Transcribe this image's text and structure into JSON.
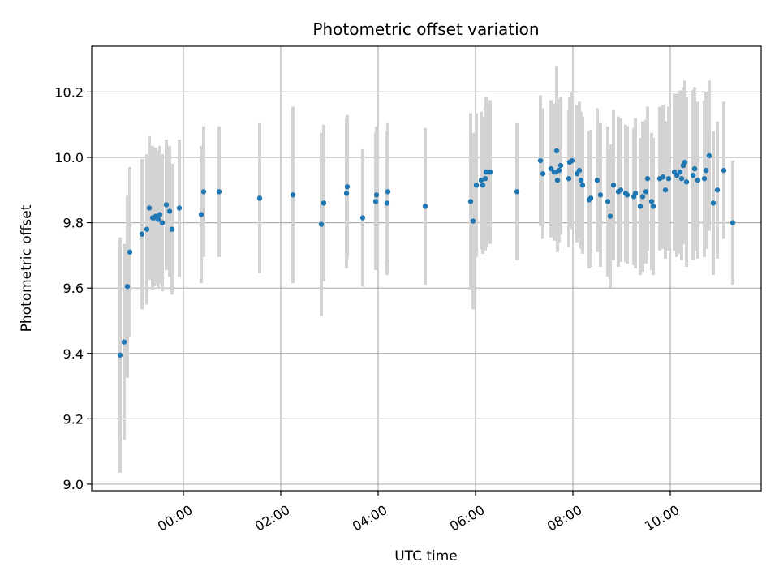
{
  "chart_data": {
    "type": "scatter",
    "title": "Photometric offset variation",
    "xlabel": "UTC time",
    "ylabel": "Photometric offset",
    "x_tick_labels": [
      "00:00",
      "02:00",
      "04:00",
      "06:00",
      "08:00",
      "10:00"
    ],
    "x_tick_values": [
      "00:00",
      "02:00",
      "04:00",
      "06:00",
      "08:00",
      "10:00"
    ],
    "y_tick_labels": [
      "9.0",
      "9.2",
      "9.4",
      "9.6",
      "9.8",
      "10.0",
      "10.2"
    ],
    "y_tick_values": [
      9.0,
      9.2,
      9.4,
      9.6,
      9.8,
      10.0,
      10.2
    ],
    "xlim": [
      "-01:53",
      "11:52"
    ],
    "ylim": [
      8.98,
      10.34
    ],
    "grid": true,
    "point_color": "#1f77b4",
    "errorbar_color": "#d3d3d3",
    "series": [
      {
        "x": [
          "-01:18",
          "-01:13",
          "-01:09",
          "-01:06",
          "-00:51",
          "-00:45",
          "-00:42",
          "-00:38",
          "-00:36",
          "-00:34",
          "-00:31",
          "-00:29",
          "-00:26",
          "-00:21",
          "-00:17",
          "-00:14",
          "-00:05",
          "00:22",
          "00:25",
          "00:44",
          "01:34",
          "02:15",
          "02:50",
          "02:53",
          "03:21",
          "03:22",
          "03:41",
          "03:57",
          "03:58",
          "04:11",
          "04:12",
          "04:58",
          "05:54",
          "05:57",
          "06:01",
          "06:07",
          "06:09",
          "06:12",
          "06:13",
          "06:18",
          "06:51",
          "07:20",
          "07:23",
          "07:33",
          "07:37",
          "07:39",
          "07:40",
          "07:41",
          "07:43",
          "07:45",
          "07:55",
          "07:56",
          "07:59",
          "08:05",
          "08:08",
          "08:10",
          "08:12",
          "08:20",
          "08:22",
          "08:30",
          "08:34",
          "08:43",
          "08:46",
          "08:50",
          "08:56",
          "08:59",
          "09:05",
          "09:07",
          "09:15",
          "09:17",
          "09:23",
          "09:26",
          "09:30",
          "09:32",
          "09:37",
          "09:39",
          "09:47",
          "09:51",
          "09:54",
          "09:58",
          "10:05",
          "10:08",
          "10:12",
          "10:14",
          "10:16",
          "10:18",
          "10:20",
          "10:28",
          "10:30",
          "10:34",
          "10:42",
          "10:44",
          "10:48",
          "10:53",
          "10:58",
          "11:06",
          "11:17"
        ],
        "y": [
          9.395,
          9.435,
          9.605,
          9.71,
          9.765,
          9.78,
          9.845,
          9.815,
          9.815,
          9.82,
          9.81,
          9.825,
          9.8,
          9.855,
          9.835,
          9.78,
          9.845,
          9.825,
          9.895,
          9.895,
          9.875,
          9.885,
          9.795,
          9.86,
          9.89,
          9.91,
          9.815,
          9.865,
          9.885,
          9.86,
          9.895,
          9.85,
          9.865,
          9.805,
          9.915,
          9.93,
          9.915,
          9.935,
          9.955,
          9.955,
          9.895,
          9.99,
          9.95,
          9.965,
          9.955,
          9.955,
          10.02,
          9.93,
          9.96,
          9.975,
          9.935,
          9.985,
          9.99,
          9.95,
          9.96,
          9.93,
          9.915,
          9.87,
          9.875,
          9.93,
          9.885,
          9.865,
          9.82,
          9.915,
          9.895,
          9.9,
          9.89,
          9.885,
          9.88,
          9.89,
          9.85,
          9.88,
          9.895,
          9.935,
          9.865,
          9.85,
          9.935,
          9.94,
          9.9,
          9.935,
          9.955,
          9.945,
          9.955,
          9.935,
          9.975,
          9.985,
          9.925,
          9.945,
          9.965,
          9.93,
          9.935,
          9.96,
          10.005,
          9.86,
          9.9,
          9.96,
          9.8
        ],
        "yerr": [
          0.36,
          0.3,
          0.28,
          0.26,
          0.23,
          0.23,
          0.22,
          0.22,
          0.21,
          0.21,
          0.21,
          0.21,
          0.21,
          0.2,
          0.2,
          0.2,
          0.21,
          0.21,
          0.2,
          0.2,
          0.23,
          0.27,
          0.28,
          0.24,
          0.23,
          0.22,
          0.21,
          0.21,
          0.21,
          0.22,
          0.21,
          0.24,
          0.27,
          0.27,
          0.22,
          0.21,
          0.21,
          0.22,
          0.23,
          0.22,
          0.21,
          0.2,
          0.2,
          0.21,
          0.21,
          0.21,
          0.26,
          0.22,
          0.22,
          0.21,
          0.21,
          0.2,
          0.21,
          0.21,
          0.21,
          0.21,
          0.21,
          0.21,
          0.21,
          0.22,
          0.22,
          0.23,
          0.22,
          0.23,
          0.23,
          0.22,
          0.21,
          0.21,
          0.21,
          0.23,
          0.21,
          0.23,
          0.22,
          0.22,
          0.21,
          0.21,
          0.22,
          0.22,
          0.21,
          0.22,
          0.24,
          0.25,
          0.25,
          0.25,
          0.24,
          0.25,
          0.26,
          0.26,
          0.25,
          0.24,
          0.24,
          0.24,
          0.23,
          0.22,
          0.21,
          0.21,
          0.19
        ]
      }
    ]
  }
}
